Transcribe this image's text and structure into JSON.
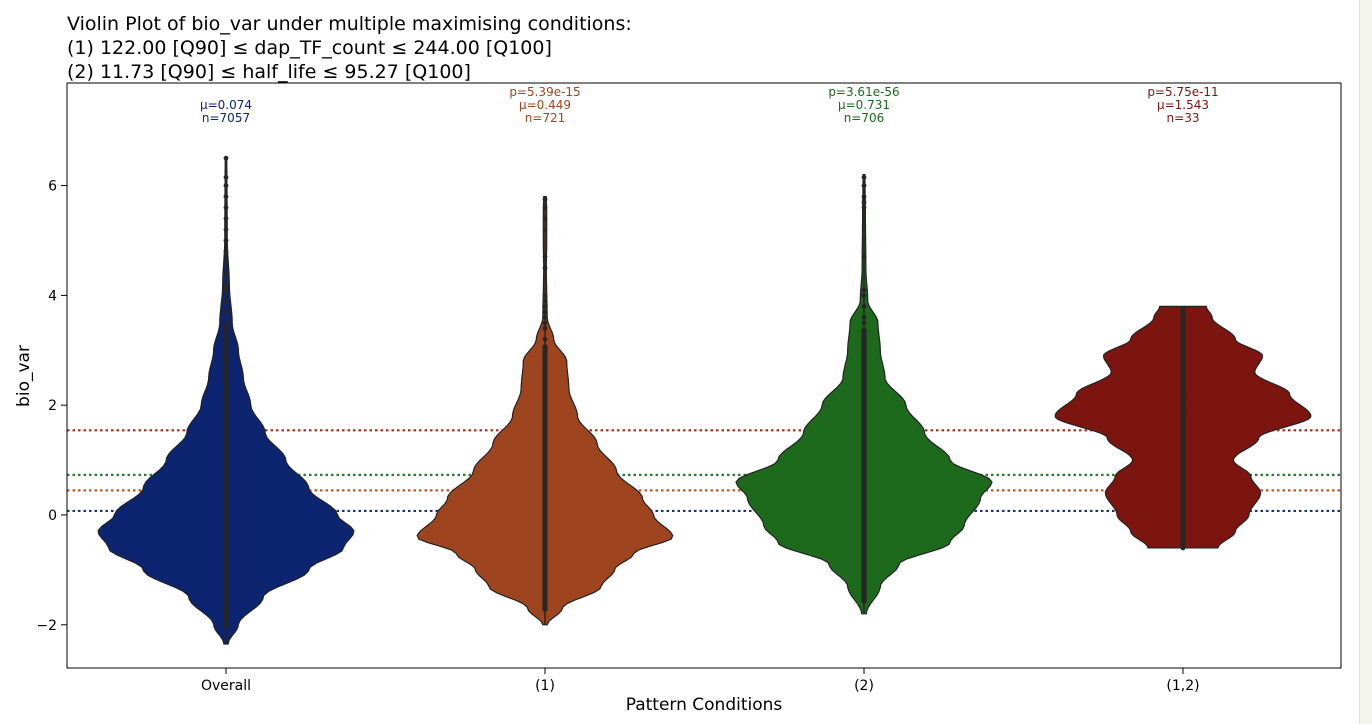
{
  "chart_data": {
    "type": "violin",
    "title_lines": [
      "Violin Plot of bio_var under multiple maximising conditions:",
      "(1) 122.00 [Q90] ≤ dap_TF_count ≤ 244.00 [Q100]",
      "(2) 11.73 [Q90] ≤ half_life ≤ 95.27 [Q100]"
    ],
    "xlabel": "Pattern Conditions",
    "ylabel": "bio_var",
    "ylim": [
      -2.75,
      7.6
    ],
    "yticks": [
      -2,
      0,
      2,
      4,
      6
    ],
    "ytick_labels": [
      "−2",
      "0",
      "2",
      "4",
      "6"
    ],
    "categories": [
      {
        "label": "Overall",
        "color": "#0d2470",
        "mean": 0.074,
        "annotations": [
          "μ=0.074",
          "n=7057"
        ],
        "min": -2.35,
        "max": 6.5,
        "box_low": -2.05,
        "box_high": 3.5,
        "profile": [
          [
            -2.35,
            0.05
          ],
          [
            -2.0,
            0.3
          ],
          [
            -1.5,
            0.9
          ],
          [
            -1.0,
            2.0
          ],
          [
            -0.6,
            2.85
          ],
          [
            -0.3,
            3.1
          ],
          [
            0.0,
            2.7
          ],
          [
            0.5,
            2.0
          ],
          [
            1.0,
            1.45
          ],
          [
            1.5,
            0.95
          ],
          [
            2.0,
            0.6
          ],
          [
            2.5,
            0.42
          ],
          [
            3.0,
            0.3
          ],
          [
            3.5,
            0.15
          ],
          [
            4.2,
            0.08
          ],
          [
            5.0,
            0.03
          ],
          [
            6.5,
            0.02
          ]
        ],
        "outliers": [
          3.7,
          3.9,
          4.1,
          4.2,
          4.4,
          4.6,
          4.8,
          5.0,
          5.2,
          5.4,
          5.6,
          5.8,
          6.0,
          6.15,
          6.5
        ]
      },
      {
        "label": "(1)",
        "color": "#9e4520",
        "mean": 0.449,
        "annotations": [
          "p=5.39e-15",
          "μ=0.449",
          "n=721"
        ],
        "min": -2.0,
        "max": 5.8,
        "box_low": -1.75,
        "box_high": 3.1,
        "profile": [
          [
            -2.0,
            0.05
          ],
          [
            -1.7,
            0.4
          ],
          [
            -1.3,
            1.3
          ],
          [
            -1.0,
            1.6
          ],
          [
            -0.7,
            2.05
          ],
          [
            -0.4,
            2.95
          ],
          [
            0.0,
            2.5
          ],
          [
            0.3,
            2.25
          ],
          [
            0.8,
            1.65
          ],
          [
            1.3,
            1.2
          ],
          [
            1.8,
            0.75
          ],
          [
            2.3,
            0.55
          ],
          [
            2.8,
            0.5
          ],
          [
            3.2,
            0.2
          ],
          [
            3.6,
            0.05
          ],
          [
            4.5,
            0.03
          ],
          [
            5.0,
            0.04
          ],
          [
            5.5,
            0.04
          ],
          [
            5.8,
            0.03
          ]
        ],
        "outliers": [
          3.2,
          3.4,
          3.5,
          3.6,
          3.7,
          3.8,
          3.9,
          4.0,
          4.5,
          4.7,
          5.2,
          5.4,
          5.6,
          5.75
        ]
      },
      {
        "label": "(2)",
        "color": "#1d6a1d",
        "mean": 0.731,
        "annotations": [
          "p=3.61e-56",
          "μ=0.731",
          "n=706"
        ],
        "min": -1.8,
        "max": 6.2,
        "box_low": -1.6,
        "box_high": 3.4,
        "profile": [
          [
            -1.8,
            0.05
          ],
          [
            -1.3,
            0.35
          ],
          [
            -0.9,
            0.75
          ],
          [
            -0.5,
            1.85
          ],
          [
            -0.2,
            2.15
          ],
          [
            0.3,
            2.5
          ],
          [
            0.6,
            2.75
          ],
          [
            1.0,
            1.85
          ],
          [
            1.5,
            1.3
          ],
          [
            2.0,
            0.9
          ],
          [
            2.5,
            0.45
          ],
          [
            3.0,
            0.35
          ],
          [
            3.5,
            0.3
          ],
          [
            3.9,
            0.08
          ],
          [
            4.5,
            0.04
          ],
          [
            5.5,
            0.03
          ],
          [
            6.2,
            0.02
          ]
        ],
        "outliers": [
          3.5,
          3.6,
          3.8,
          4.0,
          4.1,
          4.7,
          5.6,
          5.7,
          5.8,
          6.0,
          6.15
        ]
      },
      {
        "label": "(1,2)",
        "color": "#7c1510",
        "mean": 1.543,
        "annotations": [
          "p=5.75e-11",
          "μ=1.543",
          "n=33"
        ],
        "min": -0.6,
        "max": 3.8,
        "box_low": -0.6,
        "box_high": 3.8,
        "profile": [
          [
            -0.6,
            0.9
          ],
          [
            -0.3,
            1.35
          ],
          [
            0.0,
            1.7
          ],
          [
            0.4,
            2.0
          ],
          [
            0.7,
            1.75
          ],
          [
            1.0,
            1.3
          ],
          [
            1.4,
            1.95
          ],
          [
            1.8,
            3.3
          ],
          [
            2.2,
            2.75
          ],
          [
            2.6,
            1.85
          ],
          [
            2.9,
            2.05
          ],
          [
            3.2,
            1.35
          ],
          [
            3.6,
            0.75
          ],
          [
            3.8,
            0.6
          ]
        ],
        "outliers": [
          -0.6,
          -0.35,
          -0.1,
          0.2,
          0.4,
          0.6,
          0.8,
          1.1,
          1.4,
          1.6,
          1.8,
          1.9,
          2.1,
          2.2,
          2.4,
          2.6,
          2.8,
          3.0
        ]
      }
    ],
    "mean_lines": [
      {
        "value": 1.543,
        "color": "#a52a1a"
      },
      {
        "value": 0.731,
        "color": "#2a7d2a"
      },
      {
        "value": 0.449,
        "color": "#c0562a"
      },
      {
        "value": 0.074,
        "color": "#1a2e7a"
      }
    ]
  }
}
